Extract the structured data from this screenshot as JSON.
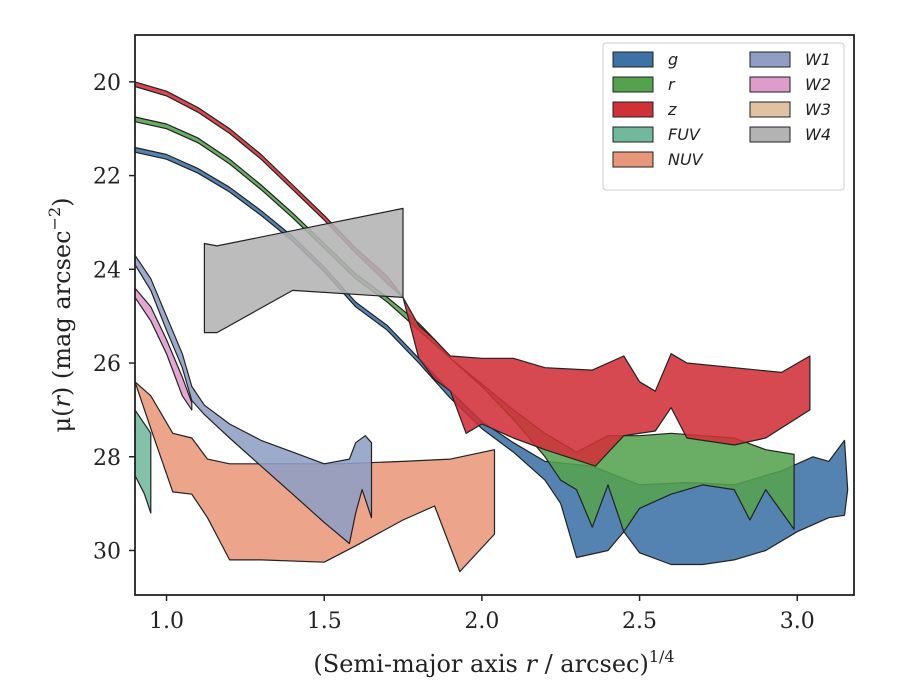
{
  "chart_data": {
    "type": "area",
    "title": "",
    "xlabel": "(Semi-major axis r / arcsec)",
    "xlabel_parts": {
      "prefix": "(Semi-major axis ",
      "var": "r",
      "middle": " / arcsec)",
      "sup": "1/4"
    },
    "ylabel_parts": {
      "mu": "μ(",
      "var": "r",
      "middle": ") (mag arcsec",
      "sup": "−2",
      "end": ")"
    },
    "xlim": [
      0.9,
      3.18
    ],
    "ylim": [
      30.95,
      19.0
    ],
    "y_inverted": true,
    "x_ticks": [
      1.0,
      1.5,
      2.0,
      2.5,
      3.0
    ],
    "x_tick_labels": [
      "1.0",
      "1.5",
      "2.0",
      "2.5",
      "3.0"
    ],
    "y_ticks": [
      20,
      22,
      24,
      26,
      28,
      30
    ],
    "y_tick_labels": [
      "20",
      "22",
      "24",
      "26",
      "28",
      "30"
    ],
    "grid": false,
    "legend": {
      "placement": "top-right",
      "columns": 2
    },
    "series": [
      {
        "name": "g",
        "color": "#3d72a6",
        "upper": [
          [
            0.9,
            21.4
          ],
          [
            1.0,
            21.55
          ],
          [
            1.1,
            21.85
          ],
          [
            1.2,
            22.25
          ],
          [
            1.3,
            22.75
          ],
          [
            1.4,
            23.3
          ],
          [
            1.5,
            23.95
          ],
          [
            1.6,
            24.7
          ],
          [
            1.7,
            25.2
          ],
          [
            1.8,
            25.9
          ],
          [
            1.9,
            26.6
          ],
          [
            2.0,
            27.25
          ],
          [
            2.1,
            27.7
          ],
          [
            2.2,
            28.1
          ],
          [
            2.35,
            28.2
          ],
          [
            2.5,
            28.6
          ],
          [
            2.65,
            28.55
          ],
          [
            2.8,
            28.6
          ],
          [
            2.95,
            28.3
          ],
          [
            3.05,
            28.0
          ],
          [
            3.1,
            28.1
          ],
          [
            3.15,
            27.65
          ],
          [
            3.16,
            28.7
          ]
        ],
        "lower": [
          [
            0.9,
            21.5
          ],
          [
            1.0,
            21.65
          ],
          [
            1.1,
            21.95
          ],
          [
            1.2,
            22.35
          ],
          [
            1.3,
            22.85
          ],
          [
            1.4,
            23.4
          ],
          [
            1.5,
            24.05
          ],
          [
            1.6,
            24.8
          ],
          [
            1.7,
            25.3
          ],
          [
            1.8,
            26.0
          ],
          [
            1.9,
            26.75
          ],
          [
            2.0,
            27.4
          ],
          [
            2.1,
            27.9
          ],
          [
            2.2,
            28.5
          ],
          [
            2.25,
            29.0
          ],
          [
            2.3,
            30.15
          ],
          [
            2.4,
            30.0
          ],
          [
            2.45,
            29.6
          ],
          [
            2.5,
            30.05
          ],
          [
            2.6,
            30.3
          ],
          [
            2.7,
            30.3
          ],
          [
            2.8,
            30.2
          ],
          [
            2.9,
            30.0
          ],
          [
            3.0,
            29.6
          ],
          [
            3.1,
            29.3
          ],
          [
            3.15,
            29.25
          ],
          [
            3.16,
            28.7
          ]
        ]
      },
      {
        "name": "r",
        "color": "#55a24e",
        "upper": [
          [
            0.9,
            20.75
          ],
          [
            1.0,
            20.9
          ],
          [
            1.1,
            21.2
          ],
          [
            1.2,
            21.65
          ],
          [
            1.3,
            22.2
          ],
          [
            1.4,
            22.8
          ],
          [
            1.5,
            23.45
          ],
          [
            1.6,
            24.1
          ],
          [
            1.7,
            24.6
          ],
          [
            1.8,
            25.15
          ],
          [
            1.85,
            25.5
          ],
          [
            1.9,
            25.9
          ],
          [
            2.0,
            26.45
          ],
          [
            2.1,
            27.0
          ],
          [
            2.2,
            27.5
          ],
          [
            2.3,
            27.9
          ],
          [
            2.4,
            27.55
          ],
          [
            2.5,
            27.55
          ],
          [
            2.6,
            27.5
          ],
          [
            2.7,
            27.55
          ],
          [
            2.8,
            27.6
          ],
          [
            2.9,
            27.85
          ],
          [
            2.99,
            27.95
          ]
        ],
        "lower": [
          [
            0.9,
            20.85
          ],
          [
            1.0,
            21.0
          ],
          [
            1.1,
            21.3
          ],
          [
            1.2,
            21.75
          ],
          [
            1.3,
            22.3
          ],
          [
            1.4,
            22.9
          ],
          [
            1.5,
            23.55
          ],
          [
            1.6,
            24.2
          ],
          [
            1.7,
            24.7
          ],
          [
            1.8,
            25.3
          ],
          [
            1.9,
            25.9
          ],
          [
            2.0,
            26.5
          ],
          [
            2.1,
            27.2
          ],
          [
            2.2,
            28.0
          ],
          [
            2.25,
            28.5
          ],
          [
            2.3,
            28.7
          ],
          [
            2.35,
            29.5
          ],
          [
            2.4,
            28.6
          ],
          [
            2.45,
            29.6
          ],
          [
            2.5,
            29.1
          ],
          [
            2.6,
            28.8
          ],
          [
            2.7,
            28.6
          ],
          [
            2.8,
            28.7
          ],
          [
            2.85,
            29.35
          ],
          [
            2.9,
            28.7
          ],
          [
            2.99,
            29.55
          ]
        ]
      },
      {
        "name": "z",
        "color": "#d03038",
        "upper": [
          [
            0.9,
            20.0
          ],
          [
            1.0,
            20.2
          ],
          [
            1.1,
            20.55
          ],
          [
            1.2,
            21.0
          ],
          [
            1.3,
            21.55
          ],
          [
            1.4,
            22.2
          ],
          [
            1.5,
            22.85
          ],
          [
            1.6,
            23.55
          ],
          [
            1.7,
            24.15
          ],
          [
            1.75,
            24.6
          ],
          [
            1.8,
            25.2
          ],
          [
            1.85,
            25.5
          ],
          [
            1.9,
            25.85
          ],
          [
            2.0,
            25.9
          ],
          [
            2.1,
            25.9
          ],
          [
            2.2,
            26.1
          ],
          [
            2.35,
            26.15
          ],
          [
            2.45,
            25.85
          ],
          [
            2.5,
            26.4
          ],
          [
            2.55,
            26.6
          ],
          [
            2.6,
            25.8
          ],
          [
            2.65,
            26.0
          ],
          [
            2.8,
            26.1
          ],
          [
            2.95,
            26.2
          ],
          [
            3.04,
            25.85
          ]
        ],
        "lower": [
          [
            0.9,
            20.1
          ],
          [
            1.0,
            20.3
          ],
          [
            1.1,
            20.65
          ],
          [
            1.2,
            21.1
          ],
          [
            1.3,
            21.65
          ],
          [
            1.4,
            22.3
          ],
          [
            1.5,
            22.95
          ],
          [
            1.6,
            23.65
          ],
          [
            1.7,
            24.3
          ],
          [
            1.75,
            24.6
          ],
          [
            1.8,
            25.9
          ],
          [
            1.85,
            26.35
          ],
          [
            1.9,
            26.6
          ],
          [
            1.95,
            27.5
          ],
          [
            2.0,
            27.3
          ],
          [
            2.1,
            27.6
          ],
          [
            2.2,
            27.85
          ],
          [
            2.36,
            28.2
          ],
          [
            2.45,
            27.55
          ],
          [
            2.55,
            27.45
          ],
          [
            2.6,
            26.95
          ],
          [
            2.65,
            27.6
          ],
          [
            2.8,
            27.75
          ],
          [
            2.9,
            27.6
          ],
          [
            3.04,
            27.0
          ]
        ]
      },
      {
        "name": "FUV",
        "color": "#72b89c",
        "upper": [
          [
            0.9,
            27.0
          ],
          [
            0.95,
            27.5
          ]
        ],
        "lower": [
          [
            0.9,
            28.4
          ],
          [
            0.93,
            28.8
          ],
          [
            0.95,
            29.2
          ]
        ]
      },
      {
        "name": "NUV",
        "color": "#e9977a",
        "upper": [
          [
            0.9,
            26.4
          ],
          [
            0.95,
            26.7
          ],
          [
            1.02,
            27.5
          ],
          [
            1.08,
            27.6
          ],
          [
            1.13,
            28.05
          ],
          [
            1.2,
            28.15
          ],
          [
            1.4,
            28.15
          ],
          [
            1.55,
            28.15
          ],
          [
            1.75,
            28.1
          ],
          [
            1.9,
            28.05
          ],
          [
            2.04,
            27.85
          ]
        ],
        "lower": [
          [
            0.9,
            26.4
          ],
          [
            0.95,
            27.4
          ],
          [
            1.02,
            28.75
          ],
          [
            1.08,
            28.8
          ],
          [
            1.13,
            29.3
          ],
          [
            1.2,
            30.2
          ],
          [
            1.3,
            30.2
          ],
          [
            1.5,
            30.25
          ],
          [
            1.6,
            29.9
          ],
          [
            1.75,
            29.35
          ],
          [
            1.85,
            29.05
          ],
          [
            1.93,
            30.45
          ],
          [
            2.04,
            29.65
          ]
        ]
      },
      {
        "name": "W1",
        "color": "#8e9ec4",
        "upper": [
          [
            0.9,
            23.7
          ],
          [
            0.95,
            24.2
          ],
          [
            1.0,
            25.0
          ],
          [
            1.05,
            25.8
          ],
          [
            1.08,
            26.5
          ],
          [
            1.12,
            26.9
          ],
          [
            1.2,
            27.3
          ],
          [
            1.3,
            27.65
          ],
          [
            1.4,
            27.9
          ],
          [
            1.5,
            28.15
          ],
          [
            1.58,
            28.05
          ],
          [
            1.6,
            27.7
          ],
          [
            1.63,
            27.55
          ],
          [
            1.65,
            27.7
          ]
        ],
        "lower": [
          [
            0.9,
            23.9
          ],
          [
            0.95,
            24.45
          ],
          [
            1.0,
            25.3
          ],
          [
            1.05,
            26.1
          ],
          [
            1.08,
            26.8
          ],
          [
            1.12,
            27.1
          ],
          [
            1.2,
            27.6
          ],
          [
            1.3,
            28.2
          ],
          [
            1.4,
            28.8
          ],
          [
            1.5,
            29.4
          ],
          [
            1.58,
            29.85
          ],
          [
            1.6,
            29.2
          ],
          [
            1.62,
            28.7
          ],
          [
            1.65,
            29.3
          ]
        ]
      },
      {
        "name": "W2",
        "color": "#df9ccb",
        "upper": [
          [
            0.9,
            24.4
          ],
          [
            0.95,
            24.8
          ],
          [
            1.0,
            25.5
          ],
          [
            1.05,
            26.3
          ],
          [
            1.08,
            26.85
          ]
        ],
        "lower": [
          [
            0.9,
            24.6
          ],
          [
            0.95,
            25.1
          ],
          [
            1.0,
            25.8
          ],
          [
            1.05,
            26.7
          ],
          [
            1.08,
            27.0
          ]
        ]
      },
      {
        "name": "W3",
        "color": "#e0c1a4",
        "upper": [],
        "lower": []
      },
      {
        "name": "W4",
        "color": "#b3b3b3",
        "upper": [
          [
            1.12,
            23.45
          ],
          [
            1.16,
            23.5
          ],
          [
            1.75,
            22.7
          ]
        ],
        "lower": [
          [
            1.12,
            25.35
          ],
          [
            1.16,
            25.35
          ],
          [
            1.4,
            24.45
          ],
          [
            1.75,
            24.6
          ]
        ]
      }
    ]
  }
}
